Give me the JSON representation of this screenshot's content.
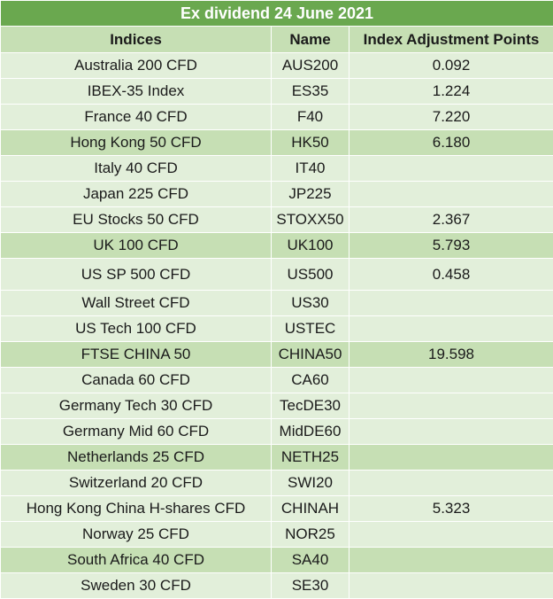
{
  "title": "Ex dividend 24 June 2021",
  "headers": [
    "Indices",
    "Name",
    "Index Adjustment Points"
  ],
  "rows": [
    {
      "index": "Australia 200 CFD",
      "name": "AUS200",
      "points": "0.092"
    },
    {
      "index": "IBEX-35 Index",
      "name": "ES35",
      "points": "1.224"
    },
    {
      "index": "France 40 CFD",
      "name": "F40",
      "points": "7.220"
    },
    {
      "index": "Hong Kong 50 CFD",
      "name": "HK50",
      "points": "6.180"
    },
    {
      "index": "Italy 40 CFD",
      "name": "IT40",
      "points": ""
    },
    {
      "index": "Japan 225 CFD",
      "name": "JP225",
      "points": ""
    },
    {
      "index": "EU Stocks 50 CFD",
      "name": "STOXX50",
      "points": "2.367"
    },
    {
      "index": "UK 100 CFD",
      "name": "UK100",
      "points": "5.793"
    },
    {
      "index": "US SP 500 CFD",
      "name": "US500",
      "points": "0.458"
    },
    {
      "index": "Wall Street CFD",
      "name": "US30",
      "points": ""
    },
    {
      "index": "US Tech 100 CFD",
      "name": "USTEC",
      "points": ""
    },
    {
      "index": "FTSE CHINA 50",
      "name": "CHINA50",
      "points": "19.598"
    },
    {
      "index": "Canada 60 CFD",
      "name": "CA60",
      "points": ""
    },
    {
      "index": "Germany Tech 30 CFD",
      "name": "TecDE30",
      "points": ""
    },
    {
      "index": "Germany Mid 60 CFD",
      "name": "MidDE60",
      "points": ""
    },
    {
      "index": "Netherlands 25 CFD",
      "name": "NETH25",
      "points": ""
    },
    {
      "index": "Switzerland 20 CFD",
      "name": "SWI20",
      "points": ""
    },
    {
      "index": "Hong Kong China H-shares CFD",
      "name": "CHINAH",
      "points": "5.323"
    },
    {
      "index": "Norway 25 CFD",
      "name": "NOR25",
      "points": ""
    },
    {
      "index": "South Africa 40 CFD",
      "name": "SA40",
      "points": ""
    },
    {
      "index": "Sweden 30 CFD",
      "name": "SE30",
      "points": ""
    }
  ]
}
